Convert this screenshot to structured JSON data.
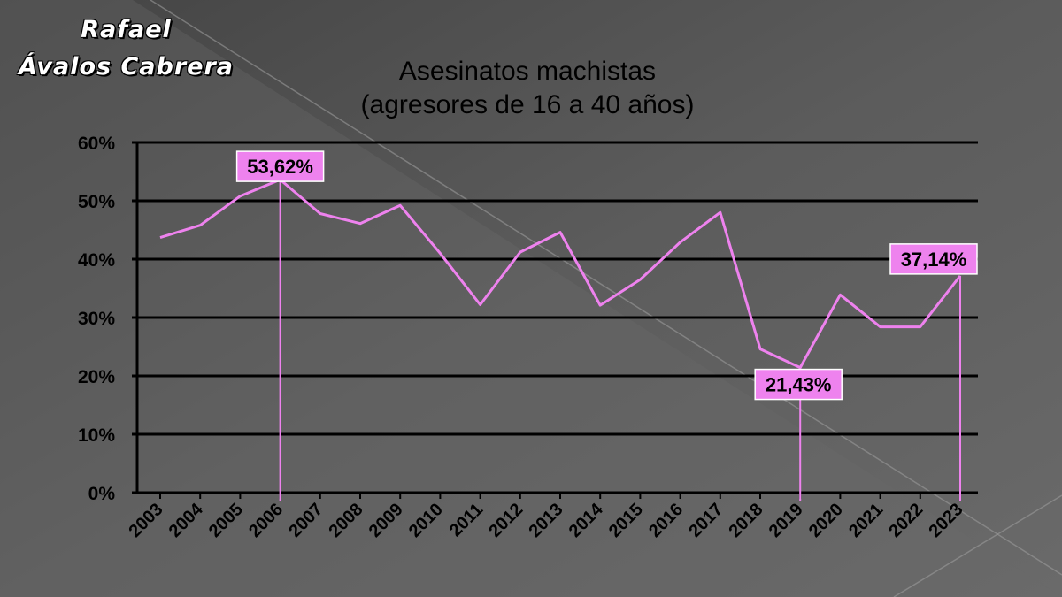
{
  "author": {
    "line1": "Rafael",
    "line2": "Ávalos Cabrera"
  },
  "chart_data": {
    "type": "line",
    "title": [
      "Asesinatos machistas",
      "(agresores de 16 a 40 años)"
    ],
    "xlabel": "",
    "ylabel": "",
    "ylim": [
      0,
      60
    ],
    "yticks": [
      "0%",
      "10%",
      "20%",
      "30%",
      "40%",
      "50%",
      "60%"
    ],
    "grid": true,
    "categories": [
      "2003",
      "2004",
      "2005",
      "2006",
      "2007",
      "2008",
      "2009",
      "2010",
      "2011",
      "2012",
      "2013",
      "2014",
      "2015",
      "2016",
      "2017",
      "2018",
      "2019",
      "2020",
      "2021",
      "2022",
      "2023"
    ],
    "series": [
      {
        "values": [
          43.7,
          45.8,
          50.8,
          53.62,
          47.8,
          46.1,
          49.2,
          41.0,
          32.2,
          41.2,
          44.6,
          32.1,
          36.5,
          42.9,
          48.0,
          24.6,
          21.43,
          33.9,
          28.4,
          28.4,
          37.14
        ],
        "color": "#ee82ee"
      }
    ],
    "annotations": [
      {
        "category": "2006",
        "label": "53,62%"
      },
      {
        "category": "2019",
        "label": "21,43%"
      },
      {
        "category": "2023",
        "label": "37,14%"
      }
    ],
    "colors": {
      "line": "#ee82ee",
      "label_bg": "#ee82ee",
      "grid": "#000000",
      "text": "#000000"
    }
  }
}
